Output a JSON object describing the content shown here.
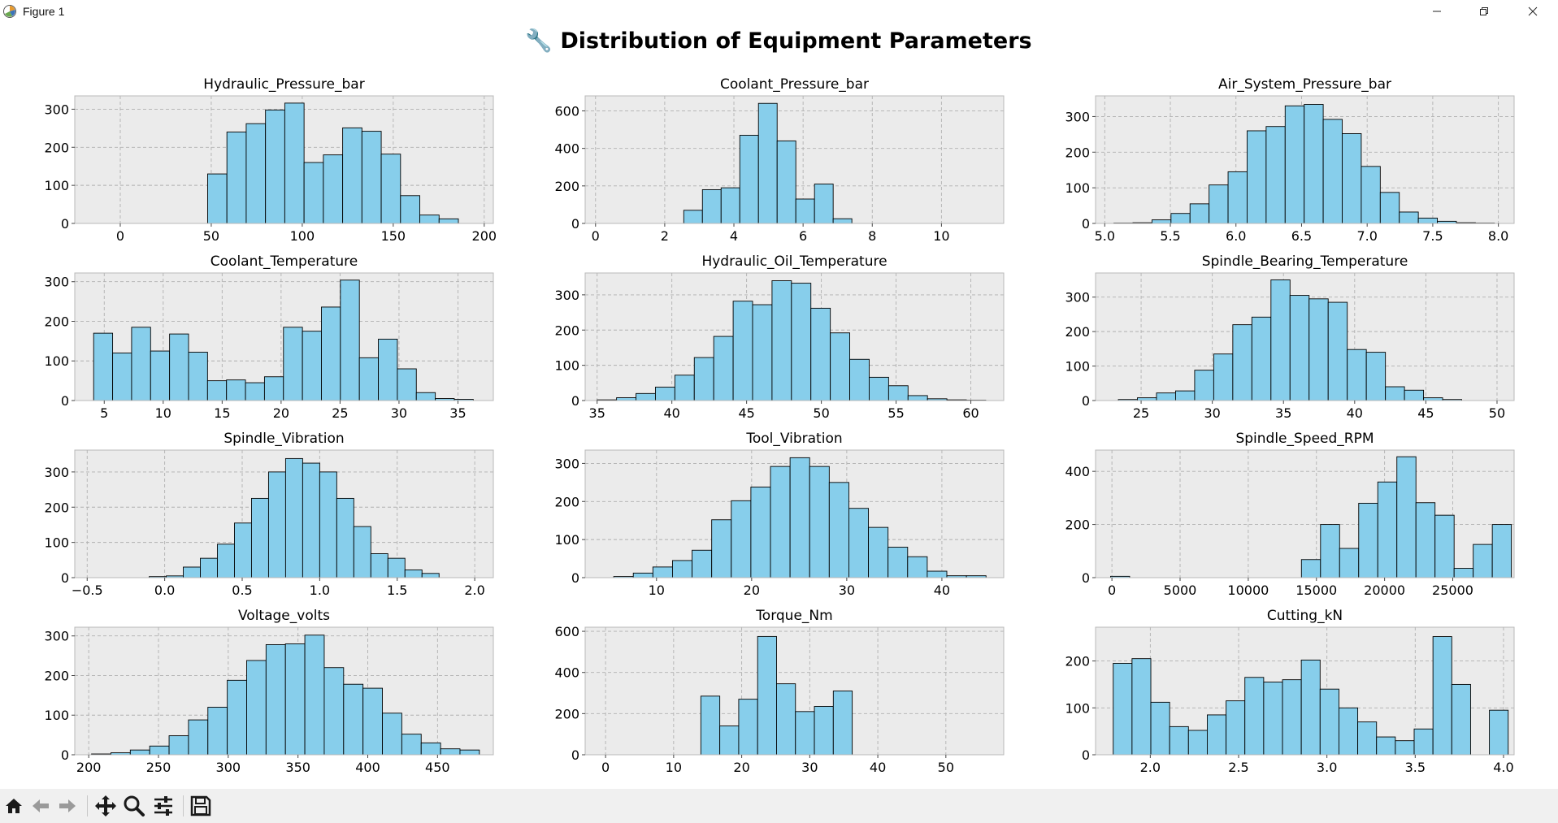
{
  "window": {
    "title": "Figure 1",
    "app_icon": "matplotlib-figure-icon",
    "controls": [
      "minimize-icon",
      "maximize-icon",
      "close-icon"
    ]
  },
  "figure": {
    "suptitle": "🔧 Distribution of Equipment Parameters",
    "bar_color": "#87CEEB",
    "edge_color": "#000000",
    "axes_bg": "#EBEBEB"
  },
  "toolbar": {
    "buttons": [
      "home-icon",
      "back-icon",
      "forward-icon",
      "pan-icon",
      "zoom-icon",
      "configure-subplots-icon",
      "save-icon"
    ]
  },
  "chart_data": [
    {
      "type": "bar",
      "title": "Hydraulic_Pressure_bar",
      "xlim": [
        -25,
        205
      ],
      "ylim": [
        0,
        335
      ],
      "xticks": [
        0,
        50,
        100,
        150,
        200
      ],
      "yticks": [
        0,
        100,
        200,
        300
      ],
      "bins": {
        "start": 48,
        "width": 10.6,
        "counts": [
          130,
          240,
          262,
          298,
          316,
          160,
          180,
          251,
          242,
          182,
          73,
          22,
          12
        ]
      }
    },
    {
      "type": "bar",
      "title": "Coolant_Pressure_bar",
      "xlim": [
        -0.3,
        11.8
      ],
      "ylim": [
        0,
        680
      ],
      "xticks": [
        0,
        2,
        4,
        6,
        8,
        10
      ],
      "yticks": [
        0,
        200,
        400,
        600
      ],
      "bins": {
        "start": 2.55,
        "width": 0.54,
        "counts": [
          70,
          180,
          190,
          470,
          640,
          440,
          130,
          210,
          25
        ]
      }
    },
    {
      "type": "bar",
      "title": "Air_System_Pressure_bar",
      "xlim": [
        4.93,
        8.12
      ],
      "ylim": [
        0,
        358
      ],
      "xticks": [
        5.0,
        5.5,
        6.0,
        6.5,
        7.0,
        7.5,
        8.0
      ],
      "yticks": [
        0,
        100,
        200,
        300
      ],
      "bins": {
        "start": 5.07,
        "width": 0.145,
        "counts": [
          1,
          2,
          10,
          28,
          55,
          108,
          145,
          260,
          272,
          330,
          334,
          292,
          252,
          160,
          87,
          32,
          15,
          6,
          2,
          1
        ]
      }
    },
    {
      "type": "bar",
      "title": "Coolant_Temperature",
      "xlim": [
        2.5,
        38
      ],
      "ylim": [
        0,
        322
      ],
      "xticks": [
        5,
        10,
        15,
        20,
        25,
        30,
        35
      ],
      "yticks": [
        0,
        100,
        200,
        300
      ],
      "bins": {
        "start": 4.1,
        "width": 1.61,
        "counts": [
          170,
          120,
          185,
          125,
          168,
          122,
          50,
          52,
          45,
          60,
          185,
          175,
          236,
          304,
          108,
          155,
          80,
          20,
          5,
          3
        ]
      }
    },
    {
      "type": "bar",
      "title": "Hydraulic_Oil_Temperature",
      "xlim": [
        34.2,
        62.2
      ],
      "ylim": [
        0,
        362
      ],
      "xticks": [
        35,
        40,
        45,
        50,
        55,
        60
      ],
      "yticks": [
        0,
        100,
        200,
        300
      ],
      "bins": {
        "start": 35.0,
        "width": 1.3,
        "counts": [
          2,
          8,
          20,
          38,
          72,
          122,
          182,
          282,
          272,
          340,
          333,
          262,
          192,
          117,
          66,
          42,
          14,
          5,
          2,
          1
        ]
      }
    },
    {
      "type": "bar",
      "title": "Spindle_Bearing_Temperature",
      "xlim": [
        21.8,
        51.2
      ],
      "ylim": [
        0,
        370
      ],
      "xticks": [
        25,
        30,
        35,
        40,
        45,
        50
      ],
      "yticks": [
        0,
        100,
        200,
        300
      ],
      "bins": {
        "start": 23.4,
        "width": 1.34,
        "counts": [
          3,
          8,
          22,
          28,
          88,
          135,
          220,
          242,
          350,
          305,
          295,
          285,
          148,
          140,
          40,
          30,
          8,
          3
        ]
      }
    },
    {
      "type": "bar",
      "title": "Spindle_Vibration",
      "xlim": [
        -0.58,
        2.12
      ],
      "ylim": [
        0,
        362
      ],
      "xticks": [
        -0.5,
        0.0,
        0.5,
        1.0,
        1.5,
        2.0
      ],
      "yticks": [
        0,
        100,
        200,
        300
      ],
      "bins": {
        "start": -0.1,
        "width": 0.11,
        "counts": [
          3,
          5,
          30,
          55,
          95,
          155,
          225,
          300,
          338,
          325,
          300,
          225,
          145,
          68,
          55,
          22,
          12
        ]
      }
    },
    {
      "type": "bar",
      "title": "Tool_Vibration",
      "xlim": [
        2.5,
        46.5
      ],
      "ylim": [
        0,
        335
      ],
      "xticks": [
        10,
        20,
        30,
        40
      ],
      "yticks": [
        0,
        100,
        200,
        300
      ],
      "bins": {
        "start": 5.5,
        "width": 2.06,
        "counts": [
          3,
          12,
          28,
          45,
          72,
          152,
          202,
          238,
          292,
          315,
          292,
          250,
          182,
          132,
          80,
          55,
          17,
          5,
          5
        ]
      }
    },
    {
      "type": "bar",
      "title": "Spindle_Speed_RPM",
      "xlim": [
        -1200,
        29500
      ],
      "ylim": [
        0,
        480
      ],
      "xticks": [
        0,
        5000,
        10000,
        15000,
        20000,
        25000
      ],
      "yticks": [
        0,
        200,
        400
      ],
      "bins": {
        "start": -100,
        "width": 1400,
        "counts": [
          5,
          0,
          0,
          0,
          0,
          0,
          0,
          0,
          0,
          0,
          68,
          200,
          110,
          280,
          360,
          455,
          282,
          235,
          35,
          125,
          200
        ]
      }
    },
    {
      "type": "bar",
      "title": "Voltage_volts",
      "xlim": [
        190,
        490
      ],
      "ylim": [
        0,
        322
      ],
      "xticks": [
        200,
        250,
        300,
        350,
        400,
        450
      ],
      "yticks": [
        0,
        100,
        200,
        300
      ],
      "bins": {
        "start": 202,
        "width": 13.9,
        "counts": [
          2,
          5,
          12,
          22,
          48,
          88,
          120,
          188,
          238,
          278,
          280,
          302,
          220,
          178,
          168,
          105,
          52,
          30,
          15,
          12
        ]
      }
    },
    {
      "type": "bar",
      "title": "Torque_Nm",
      "xlim": [
        -3,
        58.5
      ],
      "ylim": [
        0,
        620
      ],
      "xticks": [
        0,
        10,
        20,
        30,
        40,
        50
      ],
      "yticks": [
        0,
        200,
        400,
        600
      ],
      "bins": {
        "start": 14.0,
        "width": 2.78,
        "counts": [
          285,
          140,
          270,
          575,
          345,
          210,
          235,
          310
        ]
      }
    },
    {
      "type": "bar",
      "title": "Cutting_kN",
      "xlim": [
        1.69,
        4.06
      ],
      "ylim": [
        0,
        272
      ],
      "xticks": [
        2.0,
        2.5,
        3.0,
        3.5,
        4.0
      ],
      "yticks": [
        0,
        100,
        200
      ],
      "bins": {
        "start": 1.79,
        "width": 0.1065,
        "counts": [
          195,
          205,
          112,
          60,
          52,
          85,
          115,
          165,
          155,
          160,
          202,
          140,
          100,
          70,
          38,
          30,
          55,
          252,
          150,
          0,
          95
        ]
      }
    }
  ]
}
